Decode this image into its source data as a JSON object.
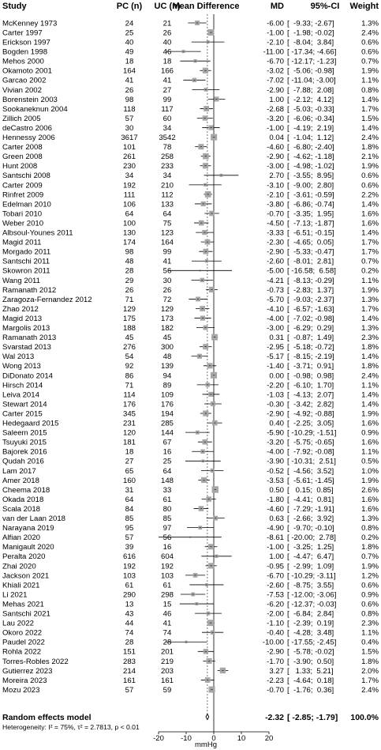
{
  "headers": {
    "study": "Study",
    "pc": "PC (n)",
    "uc": "UC (n)",
    "effect": "Mean Difference",
    "md": "MD",
    "ci": "95%-CI",
    "weight": "Weight"
  },
  "pooled": {
    "label": "Random effects model",
    "md": "-2.32",
    "ci": "[ -2.85; -1.79]",
    "weight": "100.0%",
    "heterogeneity": "Heterogeneity: I² = 75%, τ² = 2.7813, p < 0.01"
  },
  "chart_data": {
    "type": "forest",
    "xlabel": "mmHg",
    "xlim": [
      -20,
      20
    ],
    "xticks": [
      -20,
      -10,
      0,
      10,
      20
    ],
    "pooled": {
      "md": -2.32,
      "lo": -2.85,
      "hi": -1.79
    },
    "colors": {
      "box": "#a6a6a6",
      "pooled_line": "#555555"
    },
    "studies": [
      {
        "study": "McKenney 1973",
        "pc": "24",
        "uc": "21",
        "md": -6.0,
        "lo": -9.33,
        "hi": -2.67,
        "w": 1.3
      },
      {
        "study": "Carter 1997",
        "pc": "25",
        "uc": "26",
        "md": -1.0,
        "lo": -1.98,
        "hi": -0.02,
        "w": 2.4
      },
      {
        "study": "Erickson 1997",
        "pc": "40",
        "uc": "40",
        "md": -2.1,
        "lo": -8.04,
        "hi": 3.84,
        "w": 0.6
      },
      {
        "study": "Bogden 1998",
        "pc": "49",
        "uc": "46",
        "md": -11.0,
        "lo": -17.34,
        "hi": -4.66,
        "w": 0.6
      },
      {
        "study": "Mehos 2000",
        "pc": "18",
        "uc": "18",
        "md": -6.7,
        "lo": -12.17,
        "hi": -1.23,
        "w": 0.7
      },
      {
        "study": "Okamoto 2001",
        "pc": "164",
        "uc": "166",
        "md": -3.02,
        "lo": -5.06,
        "hi": -0.98,
        "w": 1.9
      },
      {
        "study": "Garcao 2002",
        "pc": "41",
        "uc": "41",
        "md": -7.02,
        "lo": -11.04,
        "hi": -3.0,
        "w": 1.1
      },
      {
        "study": "Vivian 2002",
        "pc": "26",
        "uc": "27",
        "md": -2.9,
        "lo": -7.88,
        "hi": 2.08,
        "w": 0.8
      },
      {
        "study": "Borenstein 2003",
        "pc": "98",
        "uc": "99",
        "md": 1.0,
        "lo": -2.12,
        "hi": 4.12,
        "w": 1.4
      },
      {
        "study": "Sookaneknun 2004",
        "pc": "118",
        "uc": "117",
        "md": -2.68,
        "lo": -5.03,
        "hi": -0.33,
        "w": 1.7
      },
      {
        "study": "Zillich 2005",
        "pc": "57",
        "uc": "60",
        "md": -3.2,
        "lo": -6.06,
        "hi": -0.34,
        "w": 1.5
      },
      {
        "study": "deCastro 2006",
        "pc": "30",
        "uc": "34",
        "md": -1.0,
        "lo": -4.19,
        "hi": 2.19,
        "w": 1.4
      },
      {
        "study": "Hennessy 2006",
        "pc": "3617",
        "uc": "3542",
        "md": 0.04,
        "lo": -1.04,
        "hi": 1.12,
        "w": 2.4
      },
      {
        "study": "Carter 2008",
        "pc": "101",
        "uc": "78",
        "md": -4.6,
        "lo": -6.8,
        "hi": -2.4,
        "w": 1.8
      },
      {
        "study": "Green 2008",
        "pc": "261",
        "uc": "258",
        "md": -2.9,
        "lo": -4.62,
        "hi": -1.18,
        "w": 2.1
      },
      {
        "study": "Hunt 2008",
        "pc": "230",
        "uc": "233",
        "md": -3.0,
        "lo": -4.98,
        "hi": -1.02,
        "w": 1.9
      },
      {
        "study": "Santschi 2008",
        "pc": "34",
        "uc": "34",
        "md": 2.7,
        "lo": -3.55,
        "hi": 8.95,
        "w": 0.6
      },
      {
        "study": "Carter 2009",
        "pc": "192",
        "uc": "210",
        "md": -3.1,
        "lo": -9.0,
        "hi": 2.8,
        "w": 0.6
      },
      {
        "study": "Rinfret 2009",
        "pc": "111",
        "uc": "112",
        "md": -2.1,
        "lo": -3.61,
        "hi": -0.59,
        "w": 2.2
      },
      {
        "study": "Edelman 2010",
        "pc": "106",
        "uc": "133",
        "md": -3.8,
        "lo": -6.86,
        "hi": -0.74,
        "w": 1.4
      },
      {
        "study": "Tobari 2010",
        "pc": "64",
        "uc": "64",
        "md": -0.7,
        "lo": -3.35,
        "hi": 1.95,
        "w": 1.6
      },
      {
        "study": "Weber 2010",
        "pc": "100",
        "uc": "75",
        "md": -4.5,
        "lo": -7.13,
        "hi": -1.87,
        "w": 1.6
      },
      {
        "study": "Albsoul-Younes 2011",
        "pc": "130",
        "uc": "123",
        "md": -3.33,
        "lo": -6.51,
        "hi": -0.15,
        "w": 1.4
      },
      {
        "study": "Magid 2011",
        "pc": "174",
        "uc": "164",
        "md": -2.3,
        "lo": -4.65,
        "hi": 0.05,
        "w": 1.7
      },
      {
        "study": "Morgado 2011",
        "pc": "98",
        "uc": "99",
        "md": -2.9,
        "lo": -5.33,
        "hi": -0.47,
        "w": 1.7
      },
      {
        "study": "Santschi 2011",
        "pc": "48",
        "uc": "41",
        "md": -2.6,
        "lo": -8.01,
        "hi": 2.81,
        "w": 0.7
      },
      {
        "study": "Skowron 2011",
        "pc": "28",
        "uc": "56",
        "md": -5.0,
        "lo": -16.58,
        "hi": 6.58,
        "w": 0.2
      },
      {
        "study": "Wang 2011",
        "pc": "29",
        "uc": "30",
        "md": -4.21,
        "lo": -8.13,
        "hi": -0.29,
        "w": 1.1
      },
      {
        "study": "Ramanath 2012",
        "pc": "26",
        "uc": "26",
        "md": -0.73,
        "lo": -2.83,
        "hi": 1.37,
        "w": 1.9
      },
      {
        "study": "Zaragoza-Fernandez 2012",
        "pc": "71",
        "uc": "72",
        "md": -5.7,
        "lo": -9.03,
        "hi": -2.37,
        "w": 1.3
      },
      {
        "study": "Zhao 2012",
        "pc": "129",
        "uc": "129",
        "md": -4.1,
        "lo": -6.57,
        "hi": -1.63,
        "w": 1.7
      },
      {
        "study": "Magid 2013",
        "pc": "175",
        "uc": "173",
        "md": -4.0,
        "lo": -7.02,
        "hi": -0.98,
        "w": 1.4
      },
      {
        "study": "Margolis 2013",
        "pc": "188",
        "uc": "182",
        "md": -3.0,
        "lo": -6.29,
        "hi": 0.29,
        "w": 1.3
      },
      {
        "study": "Ramanath 2013",
        "pc": "45",
        "uc": "45",
        "md": 0.31,
        "lo": -0.87,
        "hi": 1.49,
        "w": 2.3
      },
      {
        "study": "Svarstad 2013",
        "pc": "276",
        "uc": "300",
        "md": -2.95,
        "lo": -5.18,
        "hi": -0.72,
        "w": 1.8
      },
      {
        "study": "Wal 2013",
        "pc": "54",
        "uc": "48",
        "md": -5.17,
        "lo": -8.15,
        "hi": -2.19,
        "w": 1.4
      },
      {
        "study": "Wong 2013",
        "pc": "92",
        "uc": "139",
        "md": -1.4,
        "lo": -3.71,
        "hi": 0.91,
        "w": 1.8
      },
      {
        "study": "DiDonato 2014",
        "pc": "86",
        "uc": "94",
        "md": 0.0,
        "lo": -0.98,
        "hi": 0.98,
        "w": 2.4
      },
      {
        "study": "Hirsch 2014",
        "pc": "71",
        "uc": "89",
        "md": -2.2,
        "lo": -6.1,
        "hi": 1.7,
        "w": 1.1
      },
      {
        "study": "Leiva 2014",
        "pc": "114",
        "uc": "109",
        "md": -1.03,
        "lo": -4.13,
        "hi": 2.07,
        "w": 1.4
      },
      {
        "study": "Stewart 2014",
        "pc": "176",
        "uc": "176",
        "md": -0.3,
        "lo": -3.42,
        "hi": 2.82,
        "w": 1.4
      },
      {
        "study": "Carter 2015",
        "pc": "345",
        "uc": "194",
        "md": -2.9,
        "lo": -4.92,
        "hi": -0.88,
        "w": 1.9
      },
      {
        "study": "Hedegaard 2015",
        "pc": "231",
        "uc": "285",
        "md": 0.4,
        "lo": -2.25,
        "hi": 3.05,
        "w": 1.6
      },
      {
        "study": "Saleem 2015",
        "pc": "120",
        "uc": "144",
        "md": -5.9,
        "lo": -10.29,
        "hi": -1.51,
        "w": 0.9
      },
      {
        "study": "Tsuyuki 2015",
        "pc": "181",
        "uc": "67",
        "md": -3.2,
        "lo": -5.75,
        "hi": -0.65,
        "w": 1.6
      },
      {
        "study": "Bajorek 2016",
        "pc": "18",
        "uc": "16",
        "md": -4.0,
        "lo": -7.92,
        "hi": -0.08,
        "w": 1.1
      },
      {
        "study": "Qudah 2016",
        "pc": "27",
        "uc": "25",
        "md": -3.9,
        "lo": -10.31,
        "hi": 2.51,
        "w": 0.5
      },
      {
        "study": "Lam 2017",
        "pc": "65",
        "uc": "64",
        "md": -0.52,
        "lo": -4.56,
        "hi": 3.52,
        "w": 1.0
      },
      {
        "study": "Amer 2018",
        "pc": "160",
        "uc": "148",
        "md": -3.53,
        "lo": -5.61,
        "hi": -1.45,
        "w": 1.9
      },
      {
        "study": "Cheema 2018",
        "pc": "31",
        "uc": "33",
        "md": 0.5,
        "lo": 0.15,
        "hi": 0.85,
        "w": 2.6
      },
      {
        "study": "Okada 2018",
        "pc": "64",
        "uc": "61",
        "md": -1.8,
        "lo": -4.41,
        "hi": 0.81,
        "w": 1.6
      },
      {
        "study": "Scala 2018",
        "pc": "84",
        "uc": "80",
        "md": -4.6,
        "lo": -7.29,
        "hi": -1.91,
        "w": 1.6
      },
      {
        "study": "van der Laan 2018",
        "pc": "85",
        "uc": "85",
        "md": 0.63,
        "lo": -2.66,
        "hi": 3.92,
        "w": 1.3
      },
      {
        "study": "Narayana 2019",
        "pc": "95",
        "uc": "97",
        "md": -4.9,
        "lo": -9.7,
        "hi": -0.1,
        "w": 0.8
      },
      {
        "study": "Alfian 2020",
        "pc": "57",
        "uc": "56",
        "md": -8.61,
        "lo": -20.0,
        "hi": 2.78,
        "w": 0.2
      },
      {
        "study": "Manigault 2020",
        "pc": "39",
        "uc": "16",
        "md": -1.0,
        "lo": -3.25,
        "hi": 1.25,
        "w": 1.8
      },
      {
        "study": "Peralta 2020",
        "pc": "616",
        "uc": "604",
        "md": 1.0,
        "lo": -4.47,
        "hi": 6.47,
        "w": 0.7
      },
      {
        "study": "Zhai 2020",
        "pc": "192",
        "uc": "192",
        "md": -0.95,
        "lo": -2.99,
        "hi": 1.09,
        "w": 1.9
      },
      {
        "study": "Jackson 2021",
        "pc": "103",
        "uc": "103",
        "md": -6.7,
        "lo": -10.29,
        "hi": -3.11,
        "w": 1.2
      },
      {
        "study": "Khiali 2021",
        "pc": "61",
        "uc": "61",
        "md": -2.6,
        "lo": -8.75,
        "hi": 3.55,
        "w": 0.6
      },
      {
        "study": "Li 2021",
        "pc": "290",
        "uc": "298",
        "md": -7.53,
        "lo": -12.0,
        "hi": -3.06,
        "w": 0.9
      },
      {
        "study": "Mehas 2021",
        "pc": "13",
        "uc": "15",
        "md": -6.2,
        "lo": -12.37,
        "hi": -0.03,
        "w": 0.6
      },
      {
        "study": "Santschi 2021",
        "pc": "43",
        "uc": "46",
        "md": -2.0,
        "lo": -6.84,
        "hi": 2.84,
        "w": 0.8
      },
      {
        "study": "Lau 2022",
        "pc": "44",
        "uc": "41",
        "md": -1.1,
        "lo": -2.39,
        "hi": 0.19,
        "w": 2.3
      },
      {
        "study": "Okoro 2022",
        "pc": "74",
        "uc": "74",
        "md": -0.4,
        "lo": -4.28,
        "hi": 3.48,
        "w": 1.1
      },
      {
        "study": "Paudel 2022",
        "pc": "28",
        "uc": "28",
        "md": -10.0,
        "lo": -17.55,
        "hi": -2.45,
        "w": 0.4
      },
      {
        "study": "Rohla 2022",
        "pc": "151",
        "uc": "201",
        "md": -2.9,
        "lo": -5.78,
        "hi": -0.02,
        "w": 1.5
      },
      {
        "study": "Torres-Robles 2022",
        "pc": "283",
        "uc": "219",
        "md": -1.7,
        "lo": -3.9,
        "hi": 0.5,
        "w": 1.8
      },
      {
        "study": "Gutierrez 2023",
        "pc": "214",
        "uc": "203",
        "md": 3.27,
        "lo": 1.33,
        "hi": 5.21,
        "w": 2.0
      },
      {
        "study": "Moreira 2023",
        "pc": "161",
        "uc": "161",
        "md": -2.23,
        "lo": -4.64,
        "hi": 0.18,
        "w": 1.7
      },
      {
        "study": "Mozu 2023",
        "pc": "57",
        "uc": "59",
        "md": -0.7,
        "lo": -1.76,
        "hi": 0.36,
        "w": 2.4
      }
    ]
  }
}
